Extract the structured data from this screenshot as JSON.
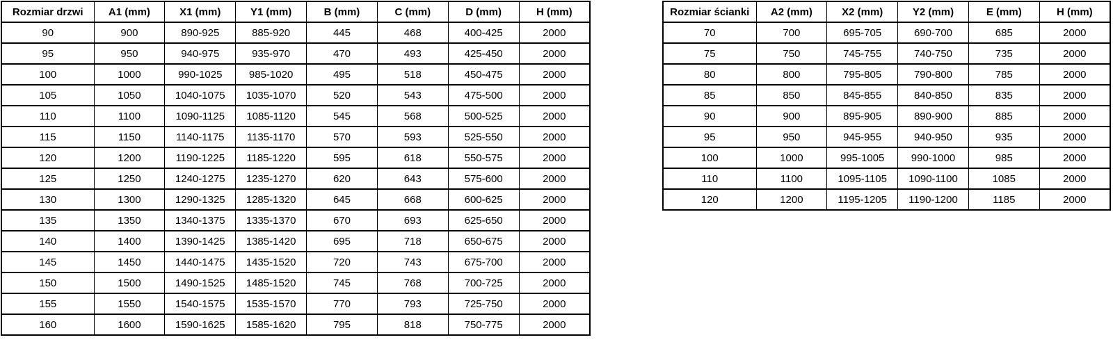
{
  "colors": {
    "background": "#ffffff",
    "border": "#000000",
    "text": "#000000"
  },
  "door_table": {
    "name": "door-size-table",
    "headers": [
      "Rozmiar drzwi",
      "A1 (mm)",
      "X1 (mm)",
      "Y1 (mm)",
      "B (mm)",
      "C (mm)",
      "D (mm)",
      "H (mm)"
    ],
    "rows": [
      [
        "90",
        "900",
        "890-925",
        "885-920",
        "445",
        "468",
        "400-425",
        "2000"
      ],
      [
        "95",
        "950",
        "940-975",
        "935-970",
        "470",
        "493",
        "425-450",
        "2000"
      ],
      [
        "100",
        "1000",
        "990-1025",
        "985-1020",
        "495",
        "518",
        "450-475",
        "2000"
      ],
      [
        "105",
        "1050",
        "1040-1075",
        "1035-1070",
        "520",
        "543",
        "475-500",
        "2000"
      ],
      [
        "110",
        "1100",
        "1090-1125",
        "1085-1120",
        "545",
        "568",
        "500-525",
        "2000"
      ],
      [
        "115",
        "1150",
        "1140-1175",
        "1135-1170",
        "570",
        "593",
        "525-550",
        "2000"
      ],
      [
        "120",
        "1200",
        "1190-1225",
        "1185-1220",
        "595",
        "618",
        "550-575",
        "2000"
      ],
      [
        "125",
        "1250",
        "1240-1275",
        "1235-1270",
        "620",
        "643",
        "575-600",
        "2000"
      ],
      [
        "130",
        "1300",
        "1290-1325",
        "1285-1320",
        "645",
        "668",
        "600-625",
        "2000"
      ],
      [
        "135",
        "1350",
        "1340-1375",
        "1335-1370",
        "670",
        "693",
        "625-650",
        "2000"
      ],
      [
        "140",
        "1400",
        "1390-1425",
        "1385-1420",
        "695",
        "718",
        "650-675",
        "2000"
      ],
      [
        "145",
        "1450",
        "1440-1475",
        "1435-1520",
        "720",
        "743",
        "675-700",
        "2000"
      ],
      [
        "150",
        "1500",
        "1490-1525",
        "1485-1520",
        "745",
        "768",
        "700-725",
        "2000"
      ],
      [
        "155",
        "1550",
        "1540-1575",
        "1535-1570",
        "770",
        "793",
        "725-750",
        "2000"
      ],
      [
        "160",
        "1600",
        "1590-1625",
        "1585-1620",
        "795",
        "818",
        "750-775",
        "2000"
      ]
    ]
  },
  "wall_table": {
    "name": "wall-size-table",
    "headers": [
      "Rozmiar ścianki",
      "A2 (mm)",
      "X2 (mm)",
      "Y2 (mm)",
      "E (mm)",
      "H (mm)"
    ],
    "rows": [
      [
        "70",
        "700",
        "695-705",
        "690-700",
        "685",
        "2000"
      ],
      [
        "75",
        "750",
        "745-755",
        "740-750",
        "735",
        "2000"
      ],
      [
        "80",
        "800",
        "795-805",
        "790-800",
        "785",
        "2000"
      ],
      [
        "85",
        "850",
        "845-855",
        "840-850",
        "835",
        "2000"
      ],
      [
        "90",
        "900",
        "895-905",
        "890-900",
        "885",
        "2000"
      ],
      [
        "95",
        "950",
        "945-955",
        "940-950",
        "935",
        "2000"
      ],
      [
        "100",
        "1000",
        "995-1005",
        "990-1000",
        "985",
        "2000"
      ],
      [
        "110",
        "1100",
        "1095-1105",
        "1090-1100",
        "1085",
        "2000"
      ],
      [
        "120",
        "1200",
        "1195-1205",
        "1190-1200",
        "1185",
        "2000"
      ]
    ]
  }
}
